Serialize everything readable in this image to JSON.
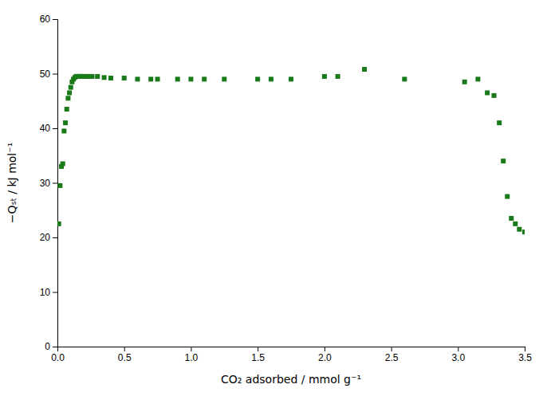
{
  "chart_data": {
    "type": "scatter",
    "x": [
      0.01,
      0.02,
      0.03,
      0.04,
      0.05,
      0.06,
      0.07,
      0.08,
      0.09,
      0.1,
      0.11,
      0.12,
      0.13,
      0.14,
      0.15,
      0.16,
      0.17,
      0.18,
      0.19,
      0.2,
      0.22,
      0.24,
      0.26,
      0.3,
      0.35,
      0.4,
      0.5,
      0.6,
      0.7,
      0.75,
      0.9,
      1.0,
      1.1,
      1.25,
      1.5,
      1.6,
      1.75,
      2.0,
      2.1,
      2.3,
      2.6,
      3.05,
      3.15,
      3.22,
      3.27,
      3.31,
      3.34,
      3.37,
      3.4,
      3.43,
      3.46,
      3.5
    ],
    "values": [
      22.5,
      29.5,
      33.0,
      33.5,
      39.5,
      41.0,
      43.5,
      45.5,
      46.5,
      47.5,
      48.5,
      49.0,
      49.3,
      49.5,
      49.5,
      49.5,
      49.5,
      49.5,
      49.5,
      49.5,
      49.5,
      49.5,
      49.5,
      49.5,
      49.3,
      49.2,
      49.2,
      49.0,
      49.0,
      49.0,
      49.0,
      49.0,
      49.0,
      49.0,
      49.0,
      49.0,
      49.0,
      49.5,
      49.5,
      50.8,
      49.0,
      48.5,
      49.0,
      46.5,
      46.0,
      41.0,
      34.0,
      27.5,
      23.5,
      22.5,
      21.5,
      21.0
    ],
    "color": "#1a7a1a",
    "marker": "square",
    "xlabel": "CO₂ adsorbed / mmol g⁻¹",
    "ylabel": "−Qₛₜ / kJ mol⁻¹",
    "xlim": [
      0,
      3.5
    ],
    "ylim": [
      0,
      60
    ],
    "xticks": [
      {
        "value": 0.0,
        "label": "0.0"
      },
      0.5,
      {
        "value": 1.0,
        "label": "1.0"
      },
      1.5,
      {
        "value": 2.0,
        "label": "2.0"
      },
      2.5,
      {
        "value": 3.0,
        "label": "3.0"
      },
      3.5
    ],
    "yticks": [
      0,
      10,
      20,
      30,
      40,
      50,
      60
    ],
    "grid": false
  }
}
